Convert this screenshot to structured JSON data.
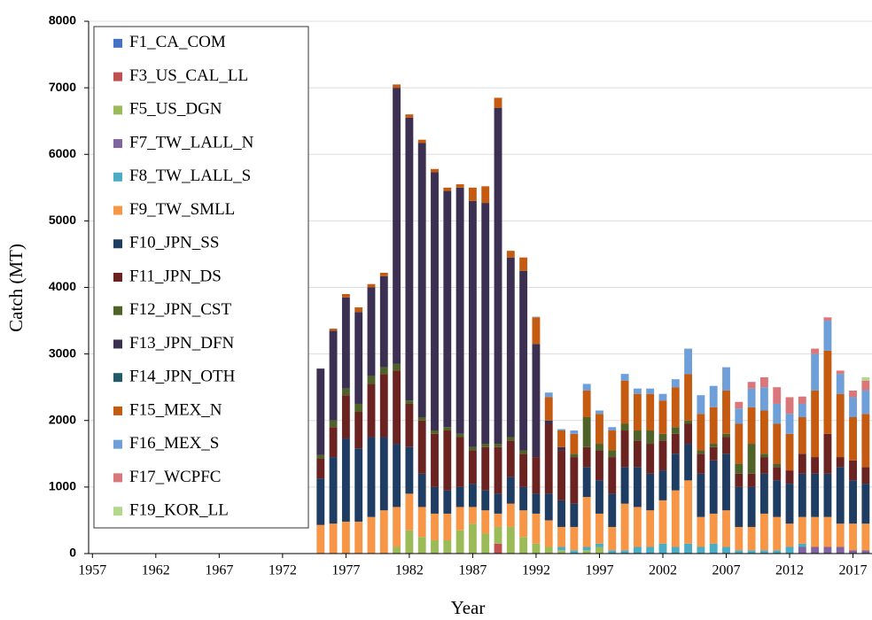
{
  "chart_data": {
    "type": "bar",
    "stacked": true,
    "x_label": "Year",
    "y_label": "Catch (MT)",
    "x": [
      1975,
      1976,
      1977,
      1978,
      1979,
      1980,
      1981,
      1982,
      1983,
      1984,
      1985,
      1986,
      1987,
      1988,
      1989,
      1990,
      1991,
      1992,
      1993,
      1994,
      1995,
      1996,
      1997,
      1998,
      1999,
      2000,
      2001,
      2002,
      2003,
      2004,
      2005,
      2006,
      2007,
      2008,
      2009,
      2010,
      2011,
      2012,
      2013,
      2014,
      2015,
      2016,
      2017,
      2018
    ],
    "xlim": [
      1956.7,
      2018.5
    ],
    "xticks": [
      1957,
      1962,
      1967,
      1972,
      1977,
      1982,
      1987,
      1992,
      1997,
      2002,
      2007,
      2012,
      2017
    ],
    "ylim": [
      0,
      8000
    ],
    "yticks": [
      0,
      1000,
      2000,
      3000,
      4000,
      5000,
      6000,
      7000,
      8000
    ],
    "grid": true,
    "legend": "upper left",
    "series": [
      {
        "name": "F1_CA_COM",
        "color": "#4472c4",
        "values": [
          0,
          0,
          0,
          0,
          0,
          0,
          0,
          0,
          0,
          0,
          0,
          0,
          0,
          0,
          0,
          0,
          0,
          0,
          0,
          0,
          0,
          0,
          0,
          0,
          0,
          0,
          0,
          0,
          0,
          0,
          0,
          0,
          0,
          0,
          0,
          0,
          0,
          0,
          0,
          0,
          0,
          0,
          0,
          0
        ]
      },
      {
        "name": "F3_US_CAL_LL",
        "color": "#c0504d",
        "values": [
          0,
          0,
          0,
          0,
          0,
          0,
          0,
          0,
          0,
          0,
          0,
          0,
          0,
          0,
          150,
          0,
          0,
          0,
          0,
          0,
          0,
          0,
          0,
          0,
          0,
          0,
          0,
          0,
          0,
          0,
          0,
          0,
          0,
          0,
          0,
          0,
          0,
          0,
          0,
          0,
          0,
          0,
          0,
          0
        ]
      },
      {
        "name": "F5_US_DGN",
        "color": "#9bbb59",
        "values": [
          0,
          0,
          0,
          0,
          0,
          0,
          100,
          350,
          250,
          200,
          200,
          350,
          450,
          300,
          250,
          400,
          250,
          150,
          100,
          50,
          0,
          50,
          100,
          0,
          0,
          0,
          0,
          0,
          0,
          0,
          0,
          0,
          0,
          0,
          0,
          0,
          0,
          0,
          0,
          0,
          0,
          0,
          0,
          0
        ]
      },
      {
        "name": "F7_TW_LALL_N",
        "color": "#8064a2",
        "values": [
          0,
          0,
          0,
          0,
          0,
          0,
          0,
          0,
          0,
          0,
          0,
          0,
          0,
          0,
          0,
          0,
          0,
          0,
          0,
          0,
          0,
          0,
          0,
          0,
          0,
          0,
          0,
          0,
          0,
          0,
          0,
          0,
          0,
          0,
          0,
          0,
          0,
          0,
          100,
          100,
          100,
          100,
          50,
          50
        ]
      },
      {
        "name": "F8_TW_LALL_S",
        "color": "#4bacc6",
        "values": [
          0,
          0,
          0,
          0,
          0,
          0,
          0,
          0,
          0,
          0,
          0,
          0,
          0,
          0,
          0,
          0,
          0,
          0,
          0,
          50,
          50,
          50,
          50,
          50,
          50,
          100,
          100,
          150,
          100,
          150,
          100,
          150,
          100,
          50,
          50,
          50,
          50,
          100,
          50,
          0,
          0,
          0,
          0,
          0
        ]
      },
      {
        "name": "F9_TW_SMLL",
        "color": "#f79646",
        "values": [
          430,
          450,
          480,
          480,
          550,
          650,
          600,
          550,
          450,
          400,
          400,
          350,
          250,
          350,
          200,
          350,
          400,
          450,
          400,
          300,
          350,
          750,
          450,
          350,
          700,
          600,
          550,
          650,
          850,
          950,
          450,
          450,
          550,
          350,
          350,
          550,
          500,
          350,
          400,
          450,
          450,
          350,
          400,
          400
        ]
      },
      {
        "name": "F10_JPN_SS",
        "color": "#1f3d63",
        "values": [
          700,
          1000,
          1250,
          1100,
          1200,
          1100,
          950,
          700,
          500,
          400,
          350,
          300,
          350,
          300,
          300,
          400,
          350,
          300,
          400,
          400,
          350,
          450,
          500,
          500,
          550,
          600,
          550,
          450,
          550,
          550,
          650,
          800,
          850,
          600,
          600,
          600,
          550,
          600,
          650,
          650,
          650,
          850,
          650,
          600
        ]
      },
      {
        "name": "F11_JPN_DS",
        "color": "#6b2321",
        "values": [
          300,
          450,
          650,
          550,
          800,
          950,
          1100,
          650,
          800,
          800,
          900,
          750,
          500,
          650,
          700,
          550,
          500,
          550,
          1050,
          750,
          700,
          300,
          450,
          550,
          550,
          400,
          450,
          450,
          300,
          300,
          300,
          200,
          250,
          200,
          200,
          250,
          200,
          200,
          300,
          250,
          600,
          150,
          300,
          250
        ]
      },
      {
        "name": "F12_JPN_CST",
        "color": "#4f6228",
        "values": [
          50,
          100,
          100,
          120,
          120,
          100,
          100,
          50,
          50,
          50,
          50,
          50,
          50,
          50,
          50,
          50,
          50,
          0,
          0,
          0,
          50,
          450,
          100,
          100,
          100,
          150,
          200,
          100,
          100,
          50,
          50,
          50,
          50,
          150,
          450,
          50,
          50,
          0,
          0,
          0,
          0,
          0,
          0,
          0
        ]
      },
      {
        "name": "F13_JPN_DFN",
        "color": "#3b2f52",
        "values": [
          1300,
          1350,
          1370,
          1380,
          1330,
          1370,
          4150,
          4250,
          4120,
          3880,
          3550,
          3700,
          3700,
          3620,
          5050,
          2700,
          2700,
          1700,
          50,
          50,
          0,
          0,
          0,
          0,
          0,
          0,
          0,
          0,
          0,
          0,
          0,
          0,
          0,
          0,
          0,
          0,
          0,
          0,
          0,
          0,
          0,
          0,
          0,
          0
        ]
      },
      {
        "name": "F14_JPN_OTH",
        "color": "#215968",
        "values": [
          0,
          0,
          0,
          0,
          0,
          0,
          0,
          0,
          0,
          0,
          0,
          0,
          0,
          0,
          0,
          0,
          0,
          0,
          0,
          0,
          0,
          0,
          0,
          0,
          0,
          0,
          0,
          0,
          0,
          0,
          0,
          0,
          0,
          0,
          0,
          0,
          0,
          0,
          0,
          0,
          0,
          0,
          0,
          0
        ]
      },
      {
        "name": "F15_MEX_N",
        "color": "#c55a11",
        "values": [
          0,
          30,
          50,
          70,
          50,
          50,
          50,
          50,
          50,
          50,
          50,
          50,
          200,
          250,
          150,
          100,
          200,
          400,
          350,
          250,
          300,
          400,
          450,
          300,
          650,
          550,
          550,
          500,
          600,
          700,
          550,
          550,
          650,
          600,
          550,
          650,
          600,
          550,
          550,
          1000,
          1250,
          950,
          650,
          800
        ]
      },
      {
        "name": "F16_MEX_S",
        "color": "#6f9fd8",
        "values": [
          0,
          0,
          0,
          0,
          0,
          0,
          0,
          0,
          0,
          0,
          0,
          0,
          0,
          0,
          0,
          0,
          0,
          10,
          70,
          20,
          50,
          100,
          50,
          50,
          100,
          80,
          80,
          100,
          120,
          380,
          280,
          320,
          350,
          230,
          280,
          350,
          300,
          300,
          200,
          550,
          450,
          300,
          300,
          350
        ]
      },
      {
        "name": "F17_WCPFC",
        "color": "#d9777a",
        "values": [
          0,
          0,
          0,
          0,
          0,
          0,
          0,
          0,
          0,
          0,
          0,
          0,
          0,
          0,
          0,
          0,
          0,
          0,
          0,
          0,
          0,
          0,
          0,
          0,
          0,
          0,
          0,
          0,
          0,
          0,
          0,
          0,
          0,
          100,
          100,
          150,
          250,
          250,
          110,
          80,
          50,
          50,
          100,
          150
        ]
      },
      {
        "name": "F19_KOR_LL",
        "color": "#b3d88c",
        "values": [
          0,
          0,
          0,
          0,
          0,
          0,
          0,
          0,
          0,
          0,
          0,
          0,
          0,
          0,
          0,
          0,
          0,
          0,
          0,
          0,
          0,
          0,
          0,
          0,
          0,
          0,
          0,
          0,
          0,
          0,
          0,
          0,
          0,
          0,
          0,
          0,
          0,
          0,
          0,
          0,
          0,
          0,
          0,
          50
        ]
      }
    ]
  }
}
